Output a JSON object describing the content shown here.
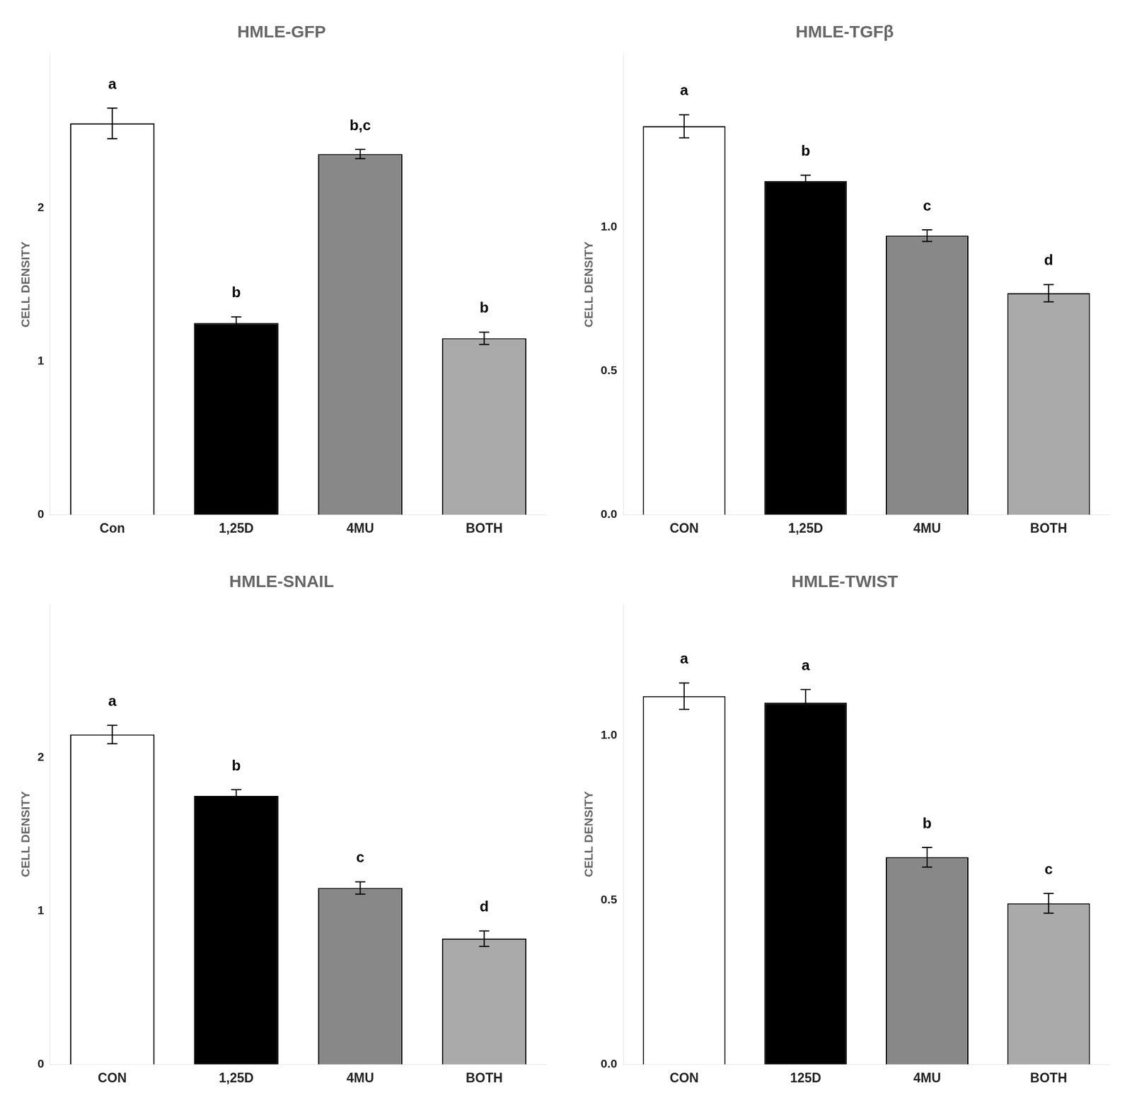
{
  "chart_data": [
    {
      "type": "bar",
      "title": "HMLE-GFP",
      "categories": [
        "Con",
        "1,25D",
        "4MU",
        "BOTH"
      ],
      "values": [
        2.55,
        1.25,
        2.35,
        1.15
      ],
      "errors": [
        0.1,
        0.04,
        0.03,
        0.04
      ],
      "annotations": [
        "a",
        "b",
        "b,c",
        "b"
      ],
      "ylim": [
        0,
        3.0
      ],
      "yticks": [
        0,
        1,
        2
      ],
      "ylabel": "CELL DENSITY",
      "colors": [
        "#FFFFFF",
        "#000000",
        "#888888",
        "#AAAAAA"
      ],
      "grid": false
    },
    {
      "type": "bar",
      "title": "HMLE-TGFβ",
      "categories": [
        "CON",
        "1,25D",
        "4MU",
        "BOTH"
      ],
      "values": [
        1.35,
        1.16,
        0.97,
        0.77
      ],
      "errors": [
        0.04,
        0.02,
        0.02,
        0.03
      ],
      "annotations": [
        "a",
        "b",
        "c",
        "d"
      ],
      "ylim": [
        0.0,
        1.6
      ],
      "yticks": [
        {
          "value": 0,
          "label": "0.0"
        },
        0.5,
        {
          "value": 1,
          "label": "1.0"
        }
      ],
      "ylabel": "CELL DENSITY",
      "colors": [
        "#FFFFFF",
        "#000000",
        "#888888",
        "#AAAAAA"
      ],
      "grid": false
    },
    {
      "type": "bar",
      "title": "HMLE-SNAIL",
      "categories": [
        "CON",
        "1,25D",
        "4MU",
        "BOTH"
      ],
      "values": [
        2.15,
        1.75,
        1.15,
        0.82
      ],
      "errors": [
        0.06,
        0.04,
        0.04,
        0.05
      ],
      "annotations": [
        "a",
        "b",
        "c",
        "d"
      ],
      "ylim": [
        0,
        3.0
      ],
      "yticks": [
        0,
        1,
        2
      ],
      "ylabel": "CELL DENSITY",
      "colors": [
        "#FFFFFF",
        "#000000",
        "#888888",
        "#AAAAAA"
      ],
      "grid": false
    },
    {
      "type": "bar",
      "title": "HMLE-TWIST",
      "categories": [
        "CON",
        "125D",
        "4MU",
        "BOTH"
      ],
      "values": [
        1.12,
        1.1,
        0.63,
        0.49
      ],
      "errors": [
        0.04,
        0.04,
        0.03,
        0.03
      ],
      "annotations": [
        "a",
        "a",
        "b",
        "c"
      ],
      "ylim": [
        0.0,
        1.4
      ],
      "yticks": [
        {
          "value": 0,
          "label": "0.0"
        },
        0.5,
        {
          "value": 1,
          "label": "1.0"
        }
      ],
      "ylabel": "CELL DENSITY",
      "colors": [
        "#FFFFFF",
        "#000000",
        "#888888",
        "#AAAAAA"
      ],
      "grid": false
    }
  ]
}
